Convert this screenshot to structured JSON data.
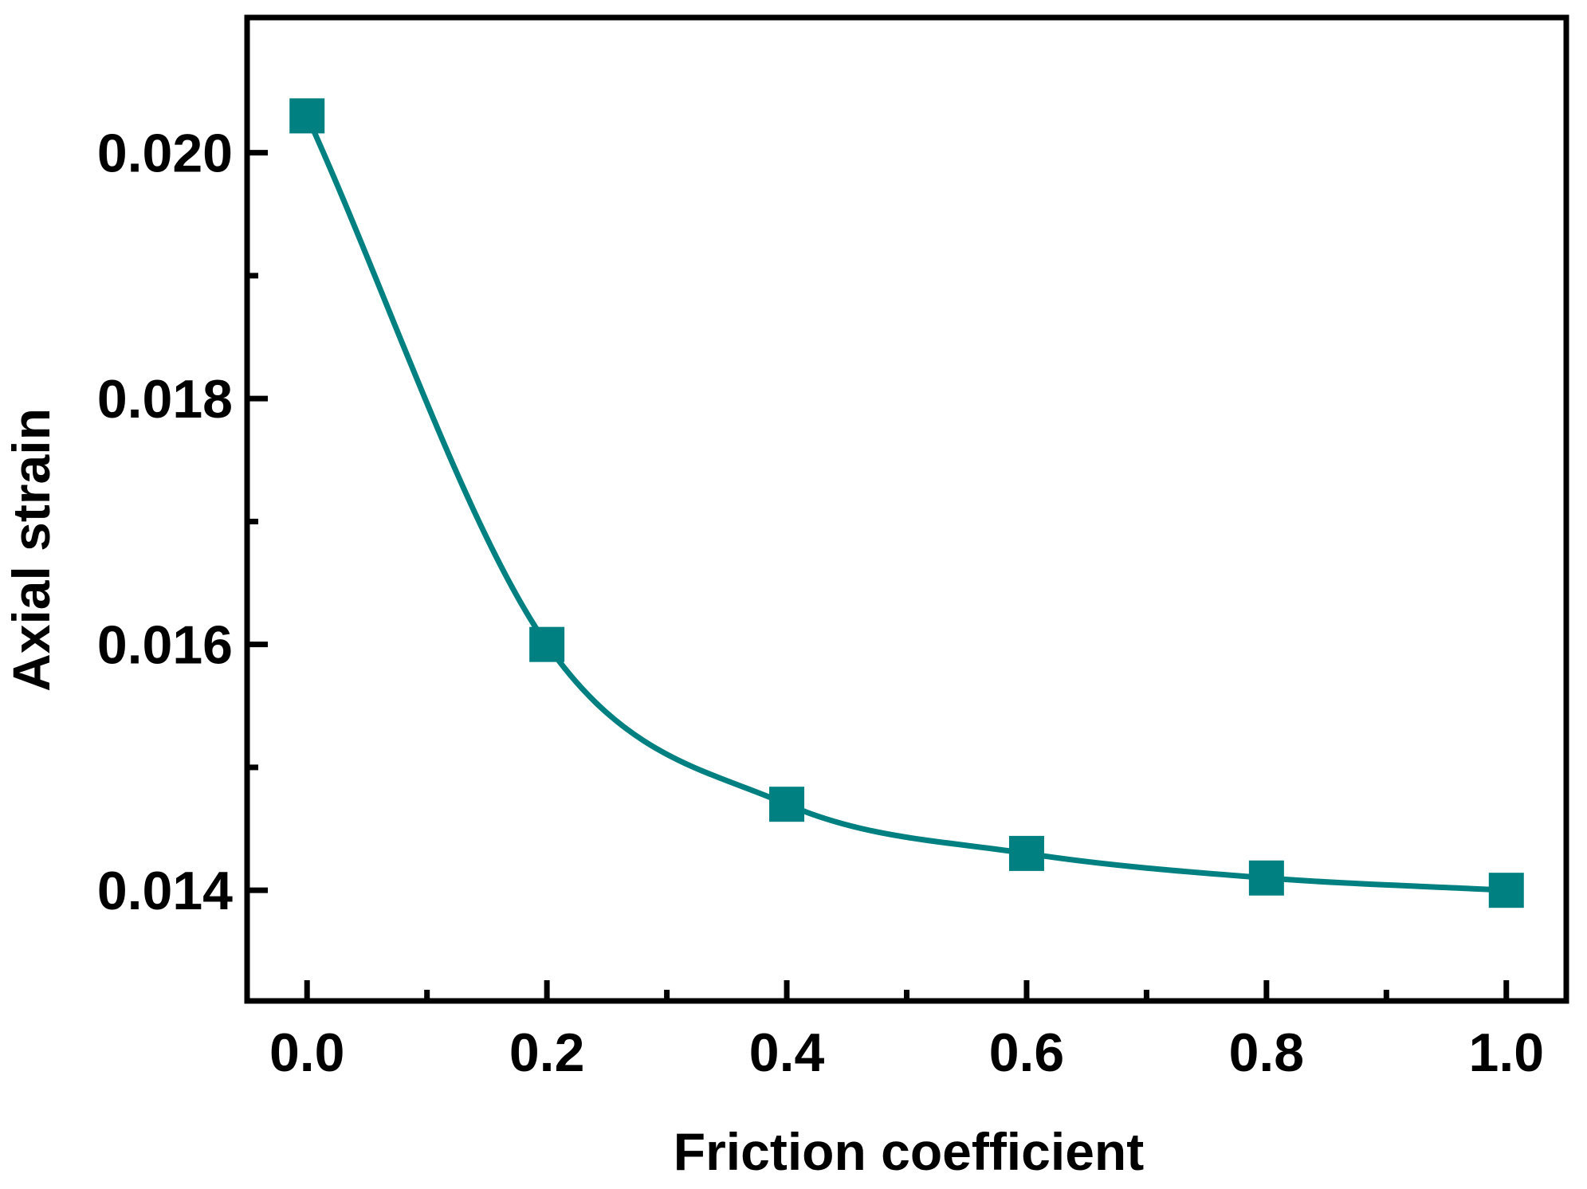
{
  "chart_data": {
    "type": "line",
    "title": "",
    "xlabel": "Friction coefficient",
    "ylabel": "Axial strain",
    "xlim": [
      -0.05,
      1.05
    ],
    "ylim": [
      0.0131,
      0.0211
    ],
    "xticks": {
      "major": [
        0.0,
        0.2,
        0.4,
        0.6,
        0.8,
        1.0
      ],
      "major_labels": [
        "0.0",
        "0.2",
        "0.4",
        "0.6",
        "0.8",
        "1.0"
      ],
      "minor": [
        0.1,
        0.3,
        0.5,
        0.7,
        0.9
      ]
    },
    "yticks": {
      "major": [
        0.014,
        0.016,
        0.018,
        0.02
      ],
      "major_labels": [
        "0.014",
        "0.016",
        "0.018",
        "0.020"
      ],
      "minor": [
        0.015,
        0.017,
        0.019
      ]
    },
    "grid": false,
    "legend": "none",
    "series": [
      {
        "x": [
          0.0,
          0.2,
          0.4,
          0.6,
          0.8,
          1.0
        ],
        "y": [
          0.0203,
          0.016,
          0.0147,
          0.0143,
          0.0141,
          0.014
        ],
        "marker": "square",
        "smooth": true,
        "color": "#008080"
      }
    ]
  }
}
